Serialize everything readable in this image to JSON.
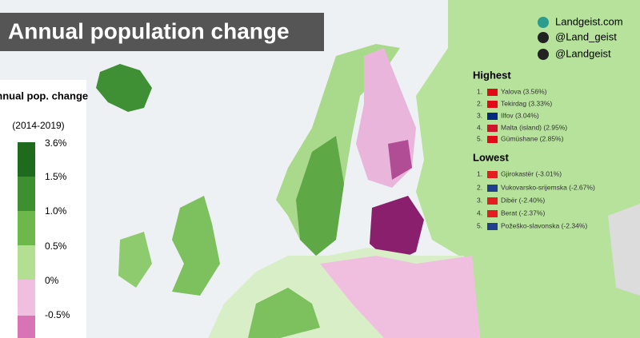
{
  "header": {
    "title": "Annual population change"
  },
  "legend": {
    "title": "Annual pop. change",
    "subtitle": "(2014-2019)",
    "labels": [
      "3.6%",
      "1.5%",
      "1.0%",
      "0.5%",
      "0%",
      "-0.5%"
    ]
  },
  "credits": [
    "Landgeist.com",
    "@Land_geist",
    "@Landgeist"
  ],
  "highest": {
    "title": "Highest",
    "items": [
      {
        "rank": "1.",
        "label": "Yalova (3.56%)"
      },
      {
        "rank": "2.",
        "label": "Tekirdag (3.33%)"
      },
      {
        "rank": "3.",
        "label": "Ilfov (3.04%)"
      },
      {
        "rank": "4.",
        "label": "Malta (island) (2.95%)"
      },
      {
        "rank": "5.",
        "label": "Gümüshane (2.85%)"
      }
    ]
  },
  "lowest": {
    "title": "Lowest",
    "items": [
      {
        "rank": "1.",
        "label": "Gjirokastër (-3.01%)"
      },
      {
        "rank": "2.",
        "label": "Vukovarsko-srijemska (-2.67%)"
      },
      {
        "rank": "3.",
        "label": "Dibër (-2.40%)"
      },
      {
        "rank": "4.",
        "label": "Berat (-2.37%)"
      },
      {
        "rank": "5.",
        "label": "Požeško-slavonska (-2.34%)"
      }
    ]
  }
}
